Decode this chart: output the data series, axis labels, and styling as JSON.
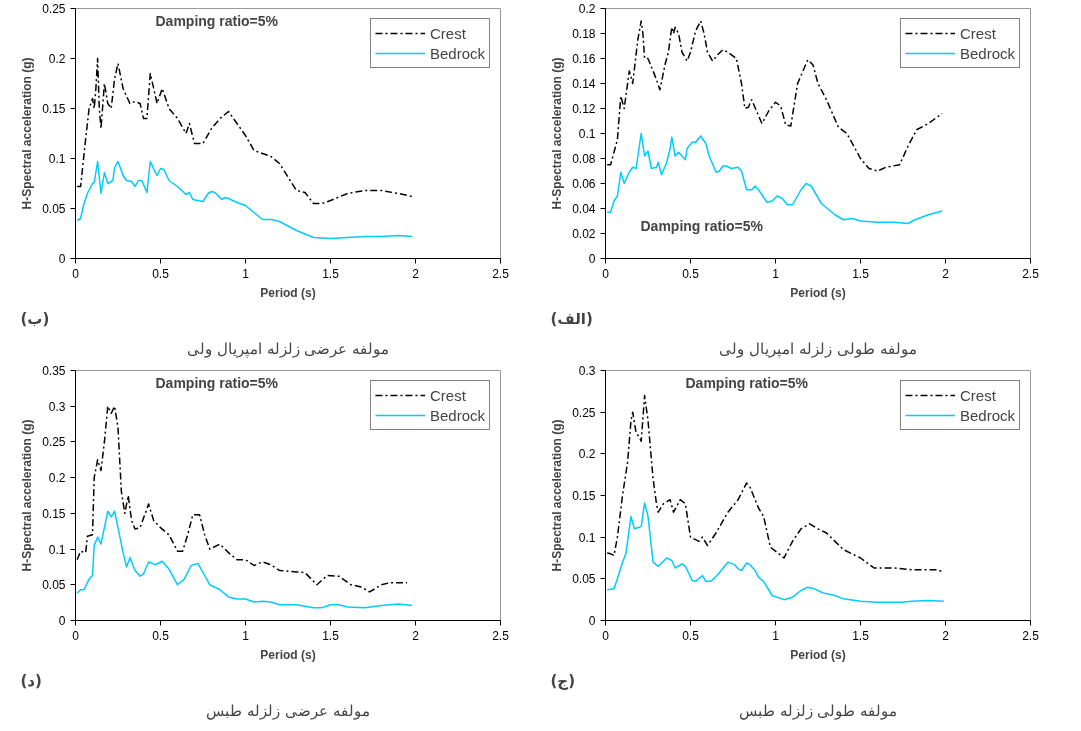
{
  "chart_data": [
    {
      "type": "line",
      "title": "مولفه عرضی زلزله امپریال ولی",
      "xlabel": "Period (s)",
      "ylabel": "H-Spectral acceleration (g)",
      "annotations": [
        "Damping ratio=5%",
        "(ب)"
      ],
      "xlim": [
        0,
        2.5
      ],
      "xticks": [
        0,
        0.5,
        1,
        1.5,
        2,
        2.5
      ],
      "ylim": [
        0,
        0.25
      ],
      "yticks": [
        0,
        0.05,
        0.1,
        0.15,
        0.2,
        0.25
      ],
      "legend": "top right",
      "series": [
        {
          "name": "Crest",
          "color": "#000000",
          "line_style": "dashed",
          "x": [
            0.01,
            0.03,
            0.06,
            0.08,
            0.1,
            0.11,
            0.12,
            0.13,
            0.14,
            0.15,
            0.17,
            0.19,
            0.21,
            0.23,
            0.25,
            0.28,
            0.32,
            0.35,
            0.38,
            0.4,
            0.42,
            0.44,
            0.46,
            0.48,
            0.51,
            0.55,
            0.6,
            0.65,
            0.67,
            0.7,
            0.75,
            0.8,
            0.85,
            0.9,
            0.95,
            1.0,
            1.05,
            1.1,
            1.15,
            1.2,
            1.3,
            1.35,
            1.4,
            1.45,
            1.5,
            1.6,
            1.7,
            1.8,
            1.9,
            1.98
          ],
          "values": [
            0.072,
            0.072,
            0.12,
            0.15,
            0.16,
            0.15,
            0.17,
            0.2,
            0.15,
            0.13,
            0.175,
            0.155,
            0.15,
            0.18,
            0.195,
            0.17,
            0.155,
            0.157,
            0.155,
            0.14,
            0.14,
            0.185,
            0.17,
            0.155,
            0.17,
            0.15,
            0.14,
            0.125,
            0.135,
            0.115,
            0.115,
            0.13,
            0.14,
            0.147,
            0.135,
            0.123,
            0.108,
            0.105,
            0.102,
            0.095,
            0.068,
            0.066,
            0.055,
            0.055,
            0.058,
            0.065,
            0.068,
            0.068,
            0.065,
            0.062
          ]
        },
        {
          "name": "Bedrock",
          "color": "#00ccff",
          "line_style": "solid",
          "x": [
            0.01,
            0.03,
            0.05,
            0.07,
            0.1,
            0.11,
            0.13,
            0.15,
            0.17,
            0.19,
            0.22,
            0.23,
            0.25,
            0.28,
            0.3,
            0.33,
            0.35,
            0.37,
            0.39,
            0.41,
            0.42,
            0.44,
            0.47,
            0.48,
            0.5,
            0.52,
            0.55,
            0.6,
            0.65,
            0.67,
            0.69,
            0.75,
            0.78,
            0.8,
            0.82,
            0.86,
            0.88,
            0.9,
            0.95,
            1.0,
            1.05,
            1.1,
            1.15,
            1.2,
            1.3,
            1.4,
            1.5,
            1.6,
            1.7,
            1.8,
            1.9,
            1.98
          ],
          "values": [
            0.038,
            0.04,
            0.055,
            0.065,
            0.075,
            0.076,
            0.097,
            0.065,
            0.086,
            0.075,
            0.078,
            0.091,
            0.097,
            0.083,
            0.078,
            0.077,
            0.072,
            0.078,
            0.078,
            0.07,
            0.066,
            0.097,
            0.086,
            0.083,
            0.09,
            0.089,
            0.078,
            0.072,
            0.064,
            0.066,
            0.059,
            0.057,
            0.065,
            0.067,
            0.066,
            0.059,
            0.061,
            0.06,
            0.056,
            0.053,
            0.046,
            0.039,
            0.039,
            0.037,
            0.028,
            0.021,
            0.02,
            0.021,
            0.022,
            0.022,
            0.023,
            0.022
          ]
        }
      ]
    },
    {
      "type": "line",
      "title": "مولفه طولی زلزله امپریال ولی",
      "xlabel": "Period (s)",
      "ylabel": "H-Spectral acceleration (g)",
      "annotations": [
        "Damping ratio=5%",
        "(الف)"
      ],
      "xlim": [
        0,
        2.5
      ],
      "xticks": [
        0,
        0.5,
        1,
        1.5,
        2,
        2.5
      ],
      "ylim": [
        0,
        0.2
      ],
      "yticks": [
        0,
        0.02,
        0.04,
        0.06,
        0.08,
        0.1,
        0.12,
        0.14,
        0.16,
        0.18,
        0.2
      ],
      "legend": "top right",
      "series": [
        {
          "name": "Crest",
          "color": "#000000",
          "line_style": "dashed",
          "x": [
            0.01,
            0.03,
            0.07,
            0.09,
            0.11,
            0.14,
            0.16,
            0.19,
            0.21,
            0.22,
            0.23,
            0.25,
            0.28,
            0.3,
            0.32,
            0.35,
            0.37,
            0.39,
            0.4,
            0.41,
            0.43,
            0.45,
            0.48,
            0.5,
            0.53,
            0.56,
            0.58,
            0.6,
            0.63,
            0.66,
            0.69,
            0.72,
            0.77,
            0.8,
            0.82,
            0.84,
            0.86,
            0.92,
            0.96,
            1.0,
            1.03,
            1.06,
            1.09,
            1.13,
            1.19,
            1.22,
            1.25,
            1.3,
            1.37,
            1.42,
            1.5,
            1.55,
            1.6,
            1.65,
            1.73,
            1.78,
            1.83,
            1.9,
            1.98
          ],
          "values": [
            0.075,
            0.075,
            0.095,
            0.13,
            0.12,
            0.15,
            0.14,
            0.175,
            0.19,
            0.18,
            0.16,
            0.16,
            0.15,
            0.143,
            0.135,
            0.155,
            0.165,
            0.185,
            0.18,
            0.185,
            0.18,
            0.165,
            0.158,
            0.165,
            0.182,
            0.19,
            0.18,
            0.165,
            0.158,
            0.163,
            0.167,
            0.165,
            0.16,
            0.14,
            0.12,
            0.121,
            0.127,
            0.108,
            0.118,
            0.125,
            0.122,
            0.107,
            0.106,
            0.14,
            0.159,
            0.155,
            0.14,
            0.127,
            0.105,
            0.1,
            0.08,
            0.072,
            0.07,
            0.073,
            0.075,
            0.09,
            0.103,
            0.108,
            0.116
          ]
        },
        {
          "name": "Bedrock",
          "color": "#00ccff",
          "line_style": "solid",
          "x": [
            0.01,
            0.03,
            0.05,
            0.07,
            0.09,
            0.11,
            0.14,
            0.16,
            0.18,
            0.21,
            0.23,
            0.25,
            0.27,
            0.3,
            0.31,
            0.33,
            0.36,
            0.38,
            0.39,
            0.41,
            0.43,
            0.47,
            0.48,
            0.51,
            0.53,
            0.56,
            0.59,
            0.61,
            0.65,
            0.67,
            0.69,
            0.71,
            0.74,
            0.78,
            0.8,
            0.83,
            0.86,
            0.88,
            0.9,
            0.95,
            0.98,
            1.01,
            1.04,
            1.07,
            1.1,
            1.15,
            1.18,
            1.21,
            1.27,
            1.35,
            1.4,
            1.45,
            1.5,
            1.6,
            1.7,
            1.78,
            1.82,
            1.9,
            1.98
          ],
          "values": [
            0.037,
            0.037,
            0.046,
            0.05,
            0.069,
            0.06,
            0.069,
            0.073,
            0.072,
            0.1,
            0.082,
            0.086,
            0.072,
            0.073,
            0.077,
            0.067,
            0.077,
            0.088,
            0.097,
            0.082,
            0.085,
            0.079,
            0.088,
            0.093,
            0.093,
            0.098,
            0.092,
            0.082,
            0.069,
            0.07,
            0.074,
            0.074,
            0.072,
            0.073,
            0.07,
            0.055,
            0.055,
            0.058,
            0.055,
            0.045,
            0.046,
            0.05,
            0.048,
            0.043,
            0.043,
            0.055,
            0.06,
            0.058,
            0.044,
            0.035,
            0.031,
            0.032,
            0.03,
            0.029,
            0.029,
            0.028,
            0.031,
            0.035,
            0.038
          ]
        }
      ]
    },
    {
      "type": "line",
      "title": "مولفه عرضی زلزله طبس",
      "xlabel": "Period (s)",
      "ylabel": "H-Spectral acceleration (g)",
      "annotations": [
        "Damping ratio=5%",
        "(د)"
      ],
      "xlim": [
        0,
        2.5
      ],
      "xticks": [
        0,
        0.5,
        1,
        1.5,
        2,
        2.5
      ],
      "ylim": [
        0,
        0.35
      ],
      "yticks": [
        0,
        0.05,
        0.1,
        0.15,
        0.2,
        0.25,
        0.3,
        0.35
      ],
      "legend": "top right",
      "series": [
        {
          "name": "Crest",
          "color": "#000000",
          "line_style": "dashed",
          "x": [
            0.01,
            0.03,
            0.06,
            0.07,
            0.1,
            0.11,
            0.13,
            0.15,
            0.17,
            0.19,
            0.21,
            0.23,
            0.25,
            0.27,
            0.29,
            0.31,
            0.33,
            0.35,
            0.38,
            0.43,
            0.46,
            0.5,
            0.55,
            0.6,
            0.63,
            0.66,
            0.69,
            0.73,
            0.76,
            0.79,
            0.85,
            0.9,
            0.95,
            1.0,
            1.05,
            1.1,
            1.15,
            1.2,
            1.3,
            1.35,
            1.42,
            1.48,
            1.55,
            1.62,
            1.68,
            1.73,
            1.8,
            1.85,
            1.95
          ],
          "values": [
            0.085,
            0.097,
            0.095,
            0.118,
            0.12,
            0.2,
            0.225,
            0.21,
            0.25,
            0.3,
            0.29,
            0.3,
            0.27,
            0.18,
            0.15,
            0.175,
            0.14,
            0.128,
            0.13,
            0.163,
            0.14,
            0.13,
            0.12,
            0.097,
            0.097,
            0.12,
            0.148,
            0.148,
            0.12,
            0.1,
            0.107,
            0.095,
            0.085,
            0.085,
            0.077,
            0.082,
            0.078,
            0.07,
            0.068,
            0.067,
            0.05,
            0.063,
            0.062,
            0.05,
            0.047,
            0.04,
            0.05,
            0.053,
            0.053
          ]
        },
        {
          "name": "Bedrock",
          "color": "#00ccff",
          "line_style": "solid",
          "x": [
            0.01,
            0.03,
            0.05,
            0.08,
            0.1,
            0.11,
            0.13,
            0.15,
            0.17,
            0.19,
            0.21,
            0.23,
            0.25,
            0.28,
            0.3,
            0.32,
            0.35,
            0.38,
            0.4,
            0.43,
            0.47,
            0.51,
            0.55,
            0.6,
            0.64,
            0.68,
            0.72,
            0.76,
            0.79,
            0.85,
            0.9,
            0.95,
            1.0,
            1.05,
            1.1,
            1.15,
            1.2,
            1.3,
            1.4,
            1.45,
            1.5,
            1.55,
            1.6,
            1.7,
            1.8,
            1.9,
            1.98
          ],
          "values": [
            0.038,
            0.043,
            0.043,
            0.058,
            0.063,
            0.105,
            0.117,
            0.107,
            0.13,
            0.153,
            0.145,
            0.153,
            0.13,
            0.095,
            0.075,
            0.088,
            0.07,
            0.062,
            0.065,
            0.082,
            0.078,
            0.083,
            0.072,
            0.05,
            0.058,
            0.077,
            0.08,
            0.063,
            0.05,
            0.043,
            0.033,
            0.03,
            0.03,
            0.026,
            0.027,
            0.026,
            0.022,
            0.022,
            0.018,
            0.018,
            0.022,
            0.022,
            0.019,
            0.018,
            0.021,
            0.023,
            0.021
          ]
        }
      ]
    },
    {
      "type": "line",
      "title": "مولفه طولی زلزله طبس",
      "xlabel": "Period (s)",
      "ylabel": "H-Spectral acceleration (g)",
      "annotations": [
        "Damping ratio=5%",
        "(ج)"
      ],
      "xlim": [
        0,
        2.5
      ],
      "xticks": [
        0,
        0.5,
        1,
        1.5,
        2,
        2.5
      ],
      "ylim": [
        0,
        0.3
      ],
      "yticks": [
        0,
        0.05,
        0.1,
        0.15,
        0.2,
        0.25,
        0.3
      ],
      "legend": "top right",
      "series": [
        {
          "name": "Crest",
          "color": "#000000",
          "line_style": "dashed",
          "x": [
            0.01,
            0.03,
            0.05,
            0.07,
            0.1,
            0.13,
            0.15,
            0.16,
            0.18,
            0.2,
            0.21,
            0.23,
            0.25,
            0.28,
            0.3,
            0.31,
            0.34,
            0.38,
            0.4,
            0.44,
            0.47,
            0.5,
            0.55,
            0.57,
            0.6,
            0.65,
            0.72,
            0.78,
            0.83,
            0.85,
            0.9,
            0.93,
            0.97,
            1.02,
            1.05,
            1.1,
            1.15,
            1.2,
            1.25,
            1.3,
            1.4,
            1.5,
            1.58,
            1.7,
            1.8,
            1.95,
            1.99
          ],
          "values": [
            0.081,
            0.08,
            0.078,
            0.1,
            0.15,
            0.19,
            0.24,
            0.25,
            0.225,
            0.22,
            0.215,
            0.27,
            0.24,
            0.17,
            0.14,
            0.13,
            0.14,
            0.145,
            0.13,
            0.145,
            0.14,
            0.1,
            0.095,
            0.1,
            0.09,
            0.105,
            0.13,
            0.145,
            0.165,
            0.16,
            0.135,
            0.125,
            0.088,
            0.08,
            0.075,
            0.095,
            0.11,
            0.116,
            0.11,
            0.105,
            0.085,
            0.075,
            0.063,
            0.063,
            0.061,
            0.061,
            0.058
          ]
        },
        {
          "name": "Bedrock",
          "color": "#00ccff",
          "line_style": "solid",
          "x": [
            0.01,
            0.05,
            0.07,
            0.1,
            0.12,
            0.15,
            0.17,
            0.2,
            0.21,
            0.23,
            0.25,
            0.28,
            0.31,
            0.36,
            0.39,
            0.41,
            0.45,
            0.47,
            0.51,
            0.53,
            0.57,
            0.59,
            0.62,
            0.66,
            0.72,
            0.76,
            0.78,
            0.8,
            0.83,
            0.85,
            0.88,
            0.9,
            0.93,
            0.98,
            1.05,
            1.1,
            1.15,
            1.19,
            1.23,
            1.28,
            1.35,
            1.4,
            1.5,
            1.6,
            1.75,
            1.8,
            1.9,
            1.99
          ],
          "values": [
            0.037,
            0.038,
            0.05,
            0.07,
            0.08,
            0.125,
            0.11,
            0.112,
            0.113,
            0.141,
            0.125,
            0.07,
            0.065,
            0.075,
            0.072,
            0.063,
            0.068,
            0.065,
            0.048,
            0.047,
            0.054,
            0.047,
            0.047,
            0.055,
            0.07,
            0.067,
            0.062,
            0.06,
            0.069,
            0.067,
            0.06,
            0.052,
            0.047,
            0.03,
            0.025,
            0.028,
            0.036,
            0.04,
            0.038,
            0.033,
            0.03,
            0.026,
            0.023,
            0.022,
            0.022,
            0.023,
            0.024,
            0.023
          ]
        }
      ]
    }
  ]
}
